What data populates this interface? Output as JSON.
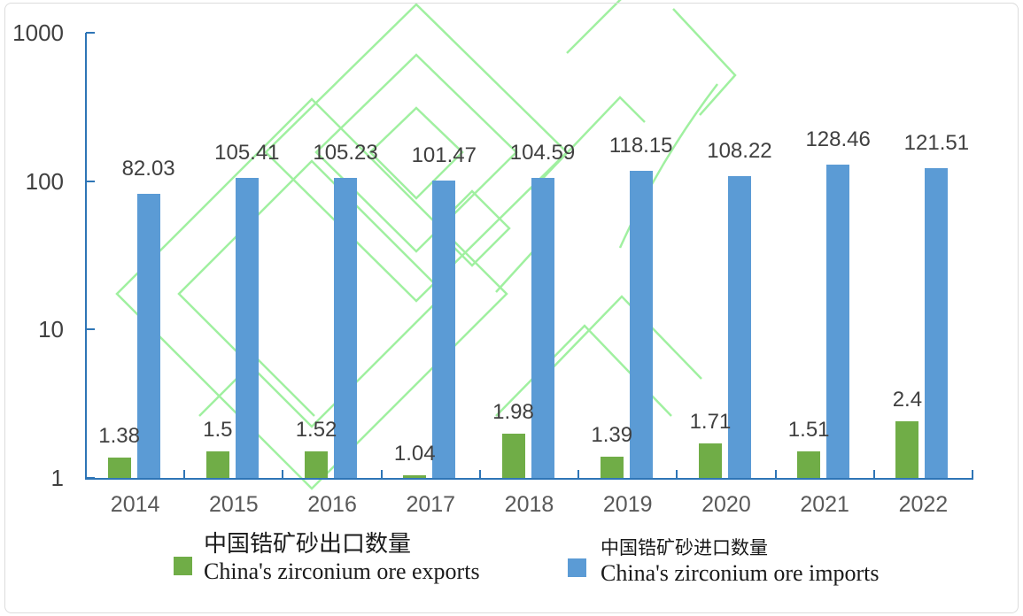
{
  "chart_data": {
    "type": "bar",
    "title": "",
    "categories": [
      "2014",
      "2015",
      "2016",
      "2017",
      "2018",
      "2019",
      "2020",
      "2021",
      "2022"
    ],
    "series": [
      {
        "name_zh": "中国锆矿砂出口数量",
        "name_en": "China's zirconium ore exports",
        "color": "#70AD47",
        "values": [
          1.38,
          1.5,
          1.52,
          1.04,
          1.98,
          1.39,
          1.71,
          1.51,
          2.4
        ],
        "labels": [
          "1.38",
          "1.5",
          "1.52",
          "1.04",
          "1.98",
          "1.39",
          "1.71",
          "1.51",
          "2.4"
        ]
      },
      {
        "name_zh": "中国锆矿砂进口数量",
        "name_en": "China's zirconium ore imports",
        "color": "#5B9BD5",
        "values": [
          82.03,
          105.41,
          105.23,
          101.47,
          104.59,
          118.15,
          108.22,
          128.46,
          121.51
        ],
        "labels": [
          "82.03",
          "105.41",
          "105.23",
          "101.47",
          "104.59",
          "118.15",
          "108.22",
          "128.46",
          "121.51"
        ]
      }
    ],
    "y_axis": {
      "scale": "log",
      "tick_labels": [
        "1000",
        "100",
        "10",
        "1"
      ],
      "min": 1,
      "max": 1000
    },
    "x_axis": {
      "tick_labels": [
        "2014",
        "2015",
        "2016",
        "2017",
        "2018",
        "2019",
        "2020",
        "2021",
        "2022"
      ]
    },
    "grid": false,
    "legend_position": "bottom",
    "data_labels_shown": true
  },
  "colors": {
    "axis": "#2E75B6",
    "bar_export": "#70AD47",
    "bar_import": "#5B9BD5",
    "data_label": "#404040",
    "year_label": "#595959",
    "background": "#FFFFFF",
    "frame_border": "#DCDCDC"
  },
  "watermark": {
    "color": "#90EE90"
  }
}
